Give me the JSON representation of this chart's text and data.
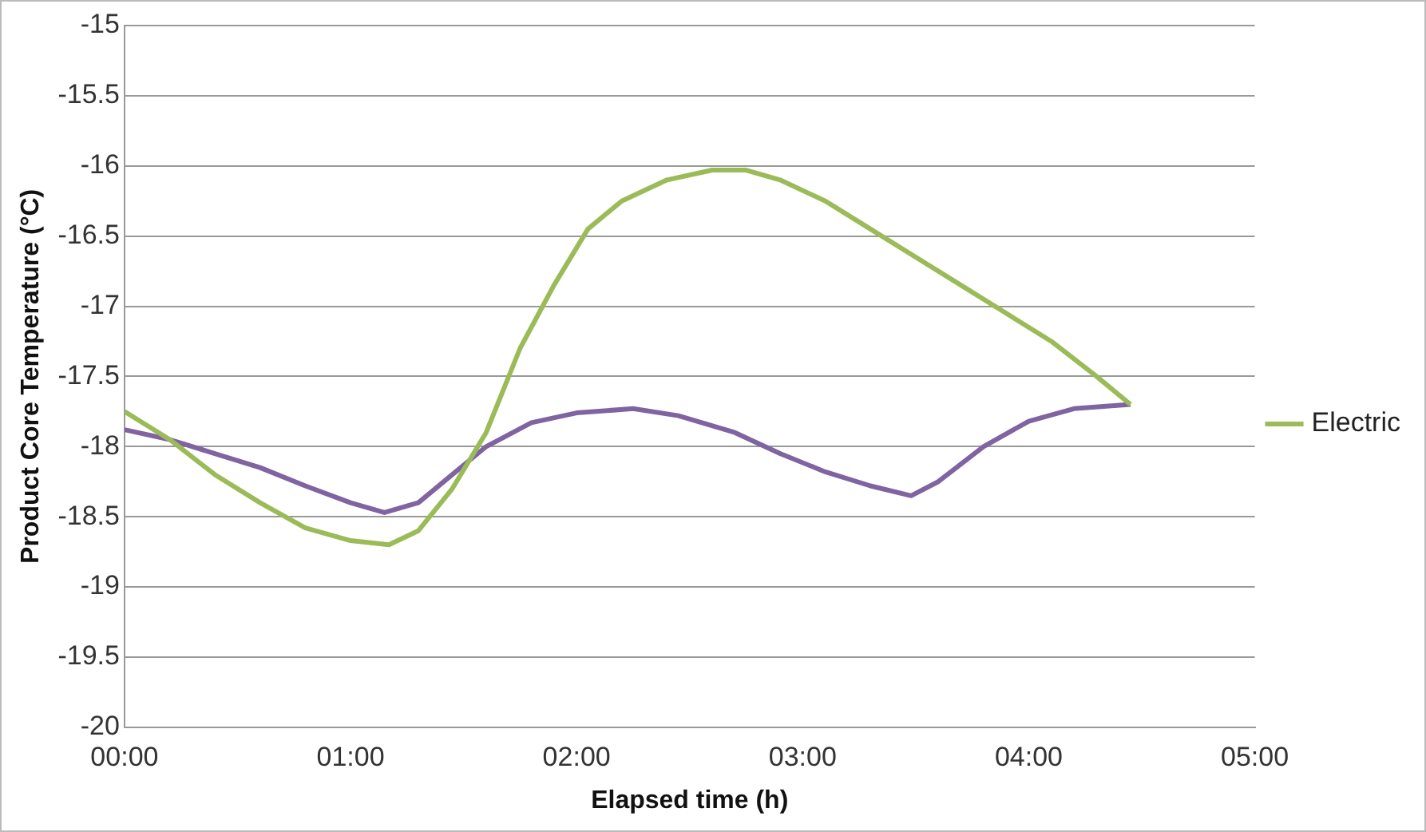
{
  "chart_data": {
    "type": "line",
    "xlabel": "Elapsed time (h)",
    "ylabel": "Product Core Temperature (°C)",
    "xlim": [
      0,
      5
    ],
    "xticks": [
      {
        "value": 0,
        "label": "00:00"
      },
      {
        "value": 1,
        "label": "01:00"
      },
      {
        "value": 2,
        "label": "02:00"
      },
      {
        "value": 3,
        "label": "03:00"
      },
      {
        "value": 4,
        "label": "04:00"
      },
      {
        "value": 5,
        "label": "05:00"
      }
    ],
    "ylim": [
      -20,
      -15
    ],
    "yticks": [
      -20,
      -19.5,
      -19,
      -18.5,
      -18,
      -17.5,
      -17,
      -16.5,
      -16,
      -15.5,
      -15
    ],
    "grid": "y",
    "legend": "right",
    "marker": "none",
    "line_style": "solid",
    "series": [
      {
        "name": "Electric",
        "color": "#9bbb59",
        "x": [
          0,
          0.2,
          0.4,
          0.6,
          0.8,
          1.0,
          1.17,
          1.3,
          1.45,
          1.6,
          1.75,
          1.9,
          2.05,
          2.2,
          2.4,
          2.6,
          2.75,
          2.9,
          3.1,
          3.3,
          3.5,
          3.7,
          3.9,
          4.1,
          4.3,
          4.45
        ],
        "values": [
          -17.75,
          -17.95,
          -18.2,
          -18.4,
          -18.58,
          -18.67,
          -18.7,
          -18.6,
          -18.3,
          -17.9,
          -17.3,
          -16.85,
          -16.45,
          -16.25,
          -16.1,
          -16.03,
          -16.03,
          -16.1,
          -16.25,
          -16.45,
          -16.65,
          -16.85,
          -17.05,
          -17.25,
          -17.5,
          -17.7
        ]
      },
      {
        "color": "#8064a2",
        "x": [
          0,
          0.2,
          0.4,
          0.6,
          0.8,
          1.0,
          1.15,
          1.3,
          1.45,
          1.6,
          1.8,
          2.0,
          2.25,
          2.45,
          2.7,
          2.9,
          3.1,
          3.3,
          3.48,
          3.6,
          3.8,
          4.0,
          4.2,
          4.45
        ],
        "values": [
          -17.88,
          -17.95,
          -18.05,
          -18.15,
          -18.28,
          -18.4,
          -18.47,
          -18.4,
          -18.2,
          -18.0,
          -17.83,
          -17.76,
          -17.73,
          -17.78,
          -17.9,
          -18.05,
          -18.18,
          -18.28,
          -18.35,
          -18.25,
          -18.0,
          -17.82,
          -17.73,
          -17.7
        ]
      }
    ]
  }
}
